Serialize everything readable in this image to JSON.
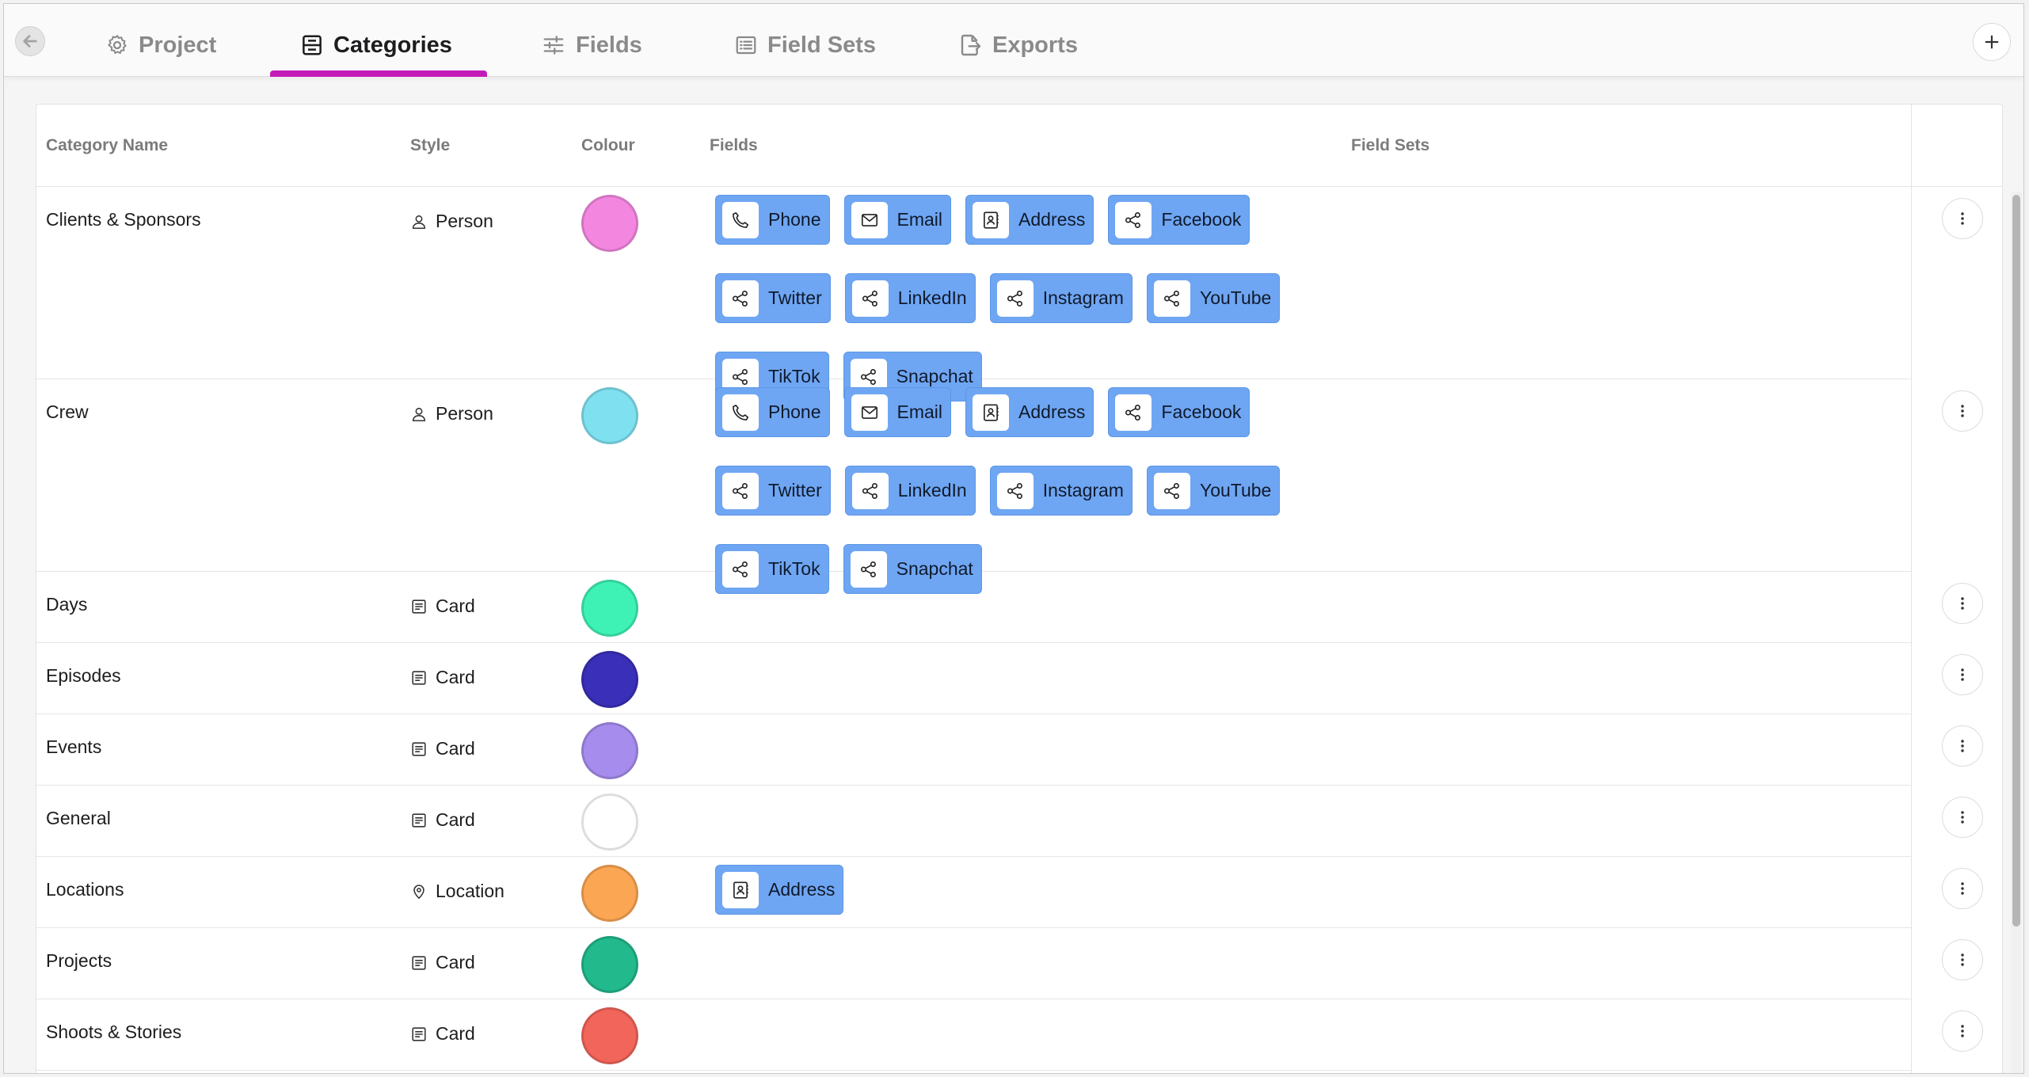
{
  "tabs": [
    {
      "label": "Project",
      "icon": "gear-icon"
    },
    {
      "label": "Categories",
      "icon": "categories-icon",
      "active": true
    },
    {
      "label": "Fields",
      "icon": "sliders-icon"
    },
    {
      "label": "Field Sets",
      "icon": "list-icon"
    },
    {
      "label": "Exports",
      "icon": "export-icon"
    }
  ],
  "accent_color": "#c41bb8",
  "table": {
    "headers": {
      "name": "Category Name",
      "style": "Style",
      "colour": "Colour",
      "fields": "Fields",
      "field_sets": "Field Sets"
    },
    "rows": [
      {
        "name": "Clients & Sponsors",
        "style": "Person",
        "style_icon": "person-icon",
        "colour": "#f387e0",
        "fields": [
          {
            "label": "Phone",
            "icon": "phone-icon"
          },
          {
            "label": "Email",
            "icon": "mail-icon"
          },
          {
            "label": "Address",
            "icon": "contact-card-icon"
          },
          {
            "label": "Facebook",
            "icon": "share-icon"
          },
          {
            "label": "Twitter",
            "icon": "share-icon"
          },
          {
            "label": "LinkedIn",
            "icon": "share-icon"
          },
          {
            "label": "Instagram",
            "icon": "share-icon"
          },
          {
            "label": "YouTube",
            "icon": "share-icon"
          },
          {
            "label": "TikTok",
            "icon": "share-icon"
          },
          {
            "label": "Snapchat",
            "icon": "share-icon"
          }
        ]
      },
      {
        "name": "Crew",
        "style": "Person",
        "style_icon": "person-icon",
        "colour": "#7fe1f0",
        "fields": [
          {
            "label": "Phone",
            "icon": "phone-icon"
          },
          {
            "label": "Email",
            "icon": "mail-icon"
          },
          {
            "label": "Address",
            "icon": "contact-card-icon"
          },
          {
            "label": "Facebook",
            "icon": "share-icon"
          },
          {
            "label": "Twitter",
            "icon": "share-icon"
          },
          {
            "label": "LinkedIn",
            "icon": "share-icon"
          },
          {
            "label": "Instagram",
            "icon": "share-icon"
          },
          {
            "label": "YouTube",
            "icon": "share-icon"
          },
          {
            "label": "TikTok",
            "icon": "share-icon"
          },
          {
            "label": "Snapchat",
            "icon": "share-icon"
          }
        ]
      },
      {
        "name": "Days",
        "style": "Card",
        "style_icon": "card-icon",
        "colour": "#3ef2b5",
        "fields": []
      },
      {
        "name": "Episodes",
        "style": "Card",
        "style_icon": "card-icon",
        "colour": "#3a2fb8",
        "fields": []
      },
      {
        "name": "Events",
        "style": "Card",
        "style_icon": "card-icon",
        "colour": "#a68ced",
        "fields": []
      },
      {
        "name": "General",
        "style": "Card",
        "style_icon": "card-icon",
        "colour": "#ffffff",
        "fields": []
      },
      {
        "name": "Locations",
        "style": "Location",
        "style_icon": "pin-icon",
        "colour": "#fba653",
        "fields": [
          {
            "label": "Address",
            "icon": "contact-card-icon"
          }
        ]
      },
      {
        "name": "Projects",
        "style": "Card",
        "style_icon": "card-icon",
        "colour": "#22b98d",
        "fields": []
      },
      {
        "name": "Shoots & Stories",
        "style": "Card",
        "style_icon": "card-icon",
        "colour": "#f2655a",
        "fields": []
      }
    ]
  }
}
